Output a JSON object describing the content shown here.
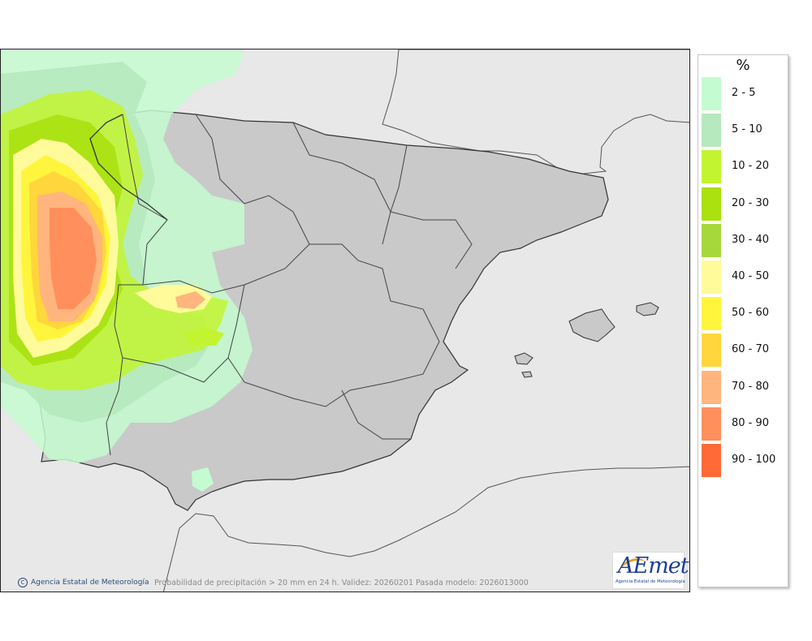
{
  "map": {
    "caption": "Probabilidad de precipitación > 20 mm en 24 h. Validez: 20260201 Pasada modelo: 2026013000",
    "credit": "Agencia Estatal de Meteorología",
    "credit_symbol": "C",
    "colors": {
      "sea": "#e8e8e8",
      "land": "#c9c9c9",
      "border": "#333333"
    }
  },
  "logo": {
    "name": "AEmet",
    "subtitle": "Agencia Estatal de Meteorología"
  },
  "legend": {
    "unit": "%",
    "items": [
      {
        "label": "2 - 5",
        "color": "#c4fbd0"
      },
      {
        "label": "5 - 10",
        "color": "#b6e9bd"
      },
      {
        "label": "10 - 20",
        "color": "#c2f530"
      },
      {
        "label": "20 - 30",
        "color": "#aae10f"
      },
      {
        "label": "30 - 40",
        "color": "#a7d83b"
      },
      {
        "label": "40 - 50",
        "color": "#fffa9a"
      },
      {
        "label": "50 - 60",
        "color": "#fff53c"
      },
      {
        "label": "60 - 70",
        "color": "#ffd63b"
      },
      {
        "label": "70 - 80",
        "color": "#ffb57d"
      },
      {
        "label": "80 - 90",
        "color": "#ff8f5c"
      },
      {
        "label": "90 - 100",
        "color": "#ff6a36"
      }
    ]
  }
}
